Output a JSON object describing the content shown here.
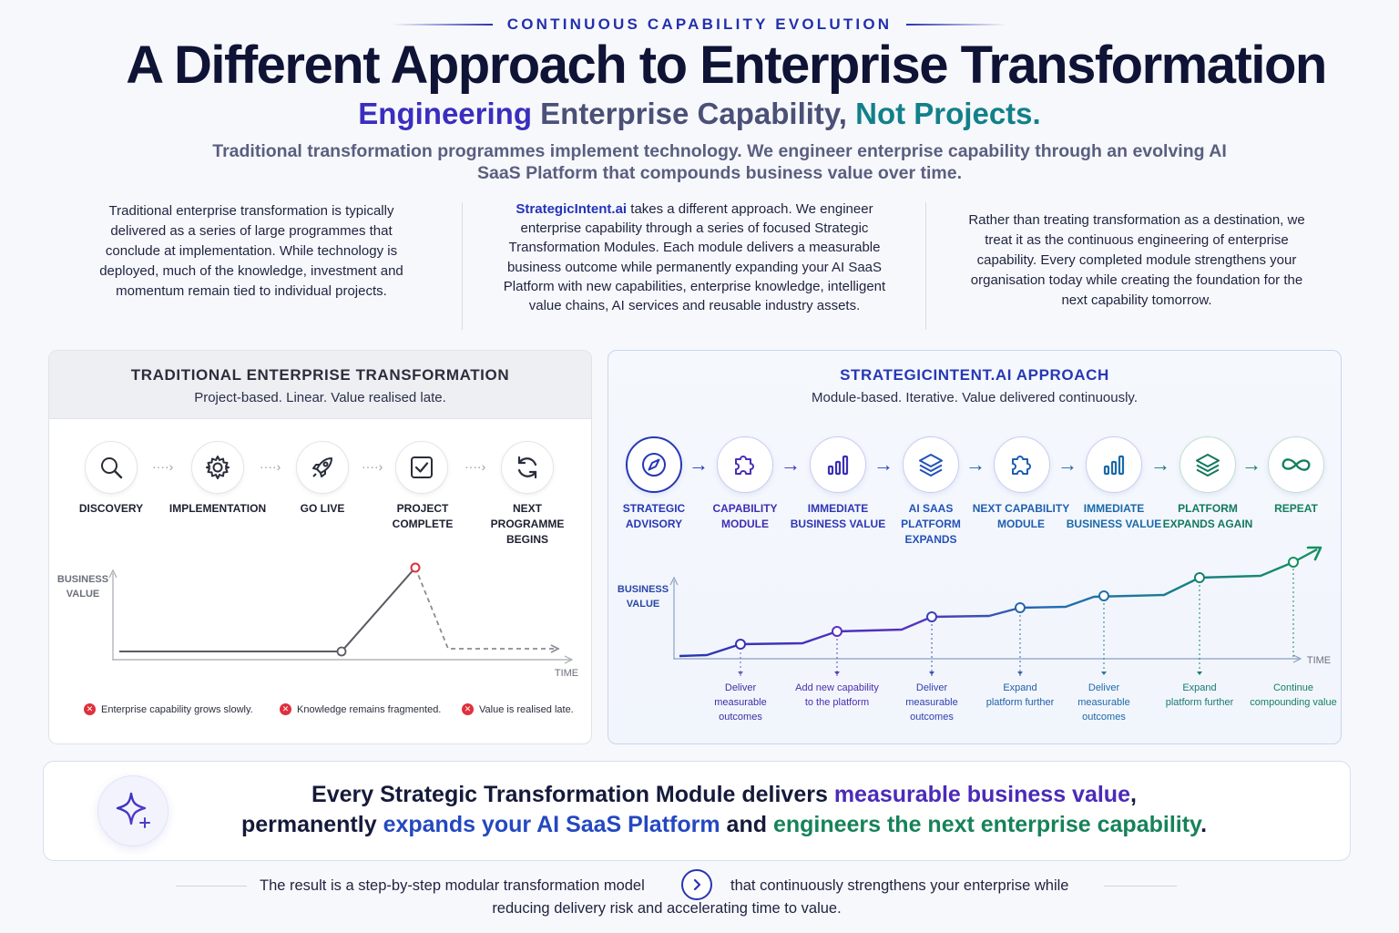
{
  "eyebrow": "CONTINUOUS CAPABILITY EVOLUTION",
  "title": "A Different Approach to Enterprise Transformation",
  "subtitle": {
    "part1": "Engineering",
    "part2": " Enterprise Capability, ",
    "part3": "Not Projects."
  },
  "lead": "Traditional transformation programmes implement technology. We engineer enterprise capability through an evolving AI SaaS Platform that compounds business value over time.",
  "intro": {
    "col1": "Traditional enterprise transformation is typically delivered as a series of large programmes that conclude at implementation. While technology is deployed, much of the knowledge, investment and momentum remain tied to individual projects.",
    "col2_brand": "StrategicIntent.ai",
    "col2_rest": " takes a different approach. We engineer enterprise capability through a series of focused Strategic Transformation Modules. Each module delivers a measurable business outcome while permanently expanding your AI SaaS Platform with new capabilities, enterprise knowledge, intelligent value chains, AI services and reusable industry assets.",
    "col3": "Rather than treating transformation as a destination, we treat it as the continuous engineering of enterprise capability. Every completed module strengthens your organisation today while creating the foundation for the next capability tomorrow."
  },
  "traditional": {
    "title": "TRADITIONAL ENTERPRISE TRANSFORMATION",
    "subtitle": "Project-based. Linear. Value realised late.",
    "steps": [
      {
        "label": "DISCOVERY",
        "icon": "search-icon"
      },
      {
        "label": "IMPLEMENTATION",
        "icon": "gear-icon"
      },
      {
        "label": "GO LIVE",
        "icon": "rocket-icon"
      },
      {
        "label": "PROJECT COMPLETE",
        "icon": "checkbox-icon"
      },
      {
        "label": "NEXT PROGRAMME BEGINS",
        "icon": "refresh-icon"
      }
    ],
    "y_label": "BUSINESS VALUE",
    "x_label": "TIME",
    "issues": [
      "Enterprise capability grows slowly.",
      "Knowledge remains fragmented.",
      "Value is realised late."
    ],
    "colors": {
      "line": "#5a5c63",
      "peak": "#d9333a"
    }
  },
  "approach": {
    "title": "STRATEGICINTENT.AI APPROACH",
    "subtitle": "Module-based. Iterative. Value delivered continuously.",
    "steps": [
      {
        "label": "STRATEGIC ADVISORY",
        "icon": "compass-icon",
        "color": "#2737b5"
      },
      {
        "label": "CAPABILITY MODULE",
        "icon": "puzzle-icon",
        "color": "#4a2eb8"
      },
      {
        "label": "IMMEDIATE BUSINESS VALUE",
        "icon": "bar-chart-icon",
        "color": "#3b2fb5"
      },
      {
        "label": "AI SAAS PLATFORM EXPANDS",
        "icon": "layers-icon",
        "color": "#2452b8"
      },
      {
        "label": "NEXT CAPABILITY MODULE",
        "icon": "puzzle-icon",
        "color": "#1f5fb0"
      },
      {
        "label": "IMMEDIATE BUSINESS VALUE",
        "icon": "bar-chart-icon",
        "color": "#1a6aa8"
      },
      {
        "label": "PLATFORM EXPANDS AGAIN",
        "icon": "layers-icon",
        "color": "#13785f"
      },
      {
        "label": "REPEAT",
        "icon": "infinity-icon",
        "color": "#138060"
      }
    ],
    "y_label": "BUSINESS VALUE",
    "x_label": "TIME",
    "notes": [
      "Deliver measurable outcomes",
      "Add new capability to the platform",
      "Deliver measurable outcomes",
      "Expand platform further",
      "Deliver measurable outcomes",
      "Expand platform further",
      "Continue compounding value"
    ]
  },
  "banner": {
    "p1": "Every Strategic Transformation Module delivers ",
    "p2": "measurable business value",
    "p3": ",",
    "p4": "permanently ",
    "p5": "expands your AI SaaS Platform",
    "p6": " and ",
    "p7": "engineers the next enterprise capability",
    "p8": "."
  },
  "footer": {
    "left": "The result is a step-by-step modular transformation model",
    "right": "that continuously strengthens your enterprise while",
    "line2": "reducing delivery risk and accelerating time to value."
  }
}
